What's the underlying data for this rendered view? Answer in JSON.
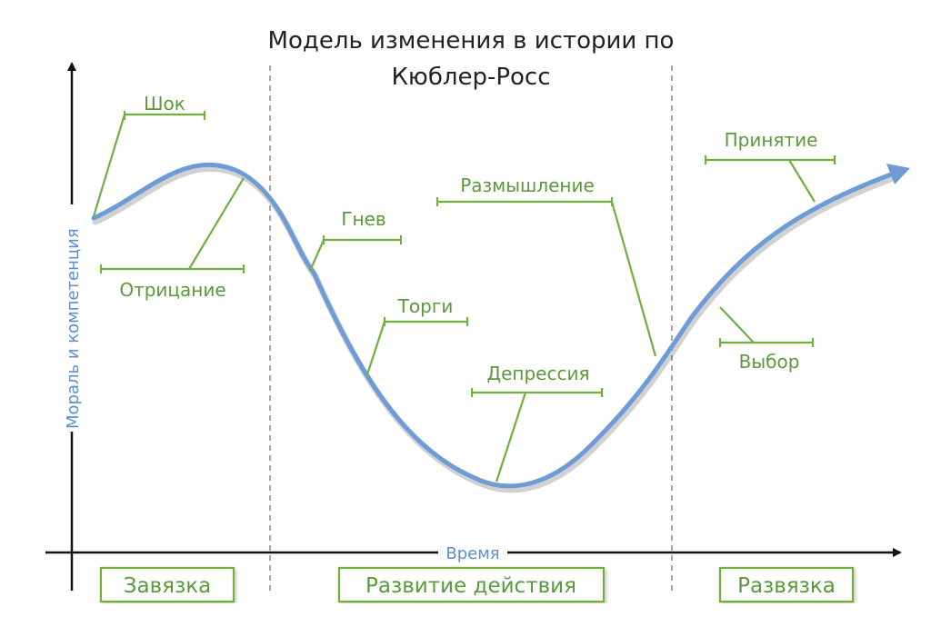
{
  "title": {
    "line1": "Модель изменения в истории по",
    "line2": "Кюблер-Росс"
  },
  "axes": {
    "y_label": "Мораль и компетенция",
    "x_label": "Время"
  },
  "stages": [
    {
      "label": "Шок"
    },
    {
      "label": "Отрицание"
    },
    {
      "label": "Гнев"
    },
    {
      "label": "Торги"
    },
    {
      "label": "Депрессия"
    },
    {
      "label": "Размышление"
    },
    {
      "label": "Выбор"
    },
    {
      "label": "Принятие"
    }
  ],
  "phases": [
    {
      "label": "Завязка"
    },
    {
      "label": "Развитие действия"
    },
    {
      "label": "Развязка"
    }
  ],
  "colors": {
    "curve": "#6f9bd6",
    "accent": "#6fb03e",
    "stage_text": "#5a9a3c",
    "axis_text": "#5b8fd0",
    "axis_line": "#111111",
    "divider": "#777777"
  }
}
